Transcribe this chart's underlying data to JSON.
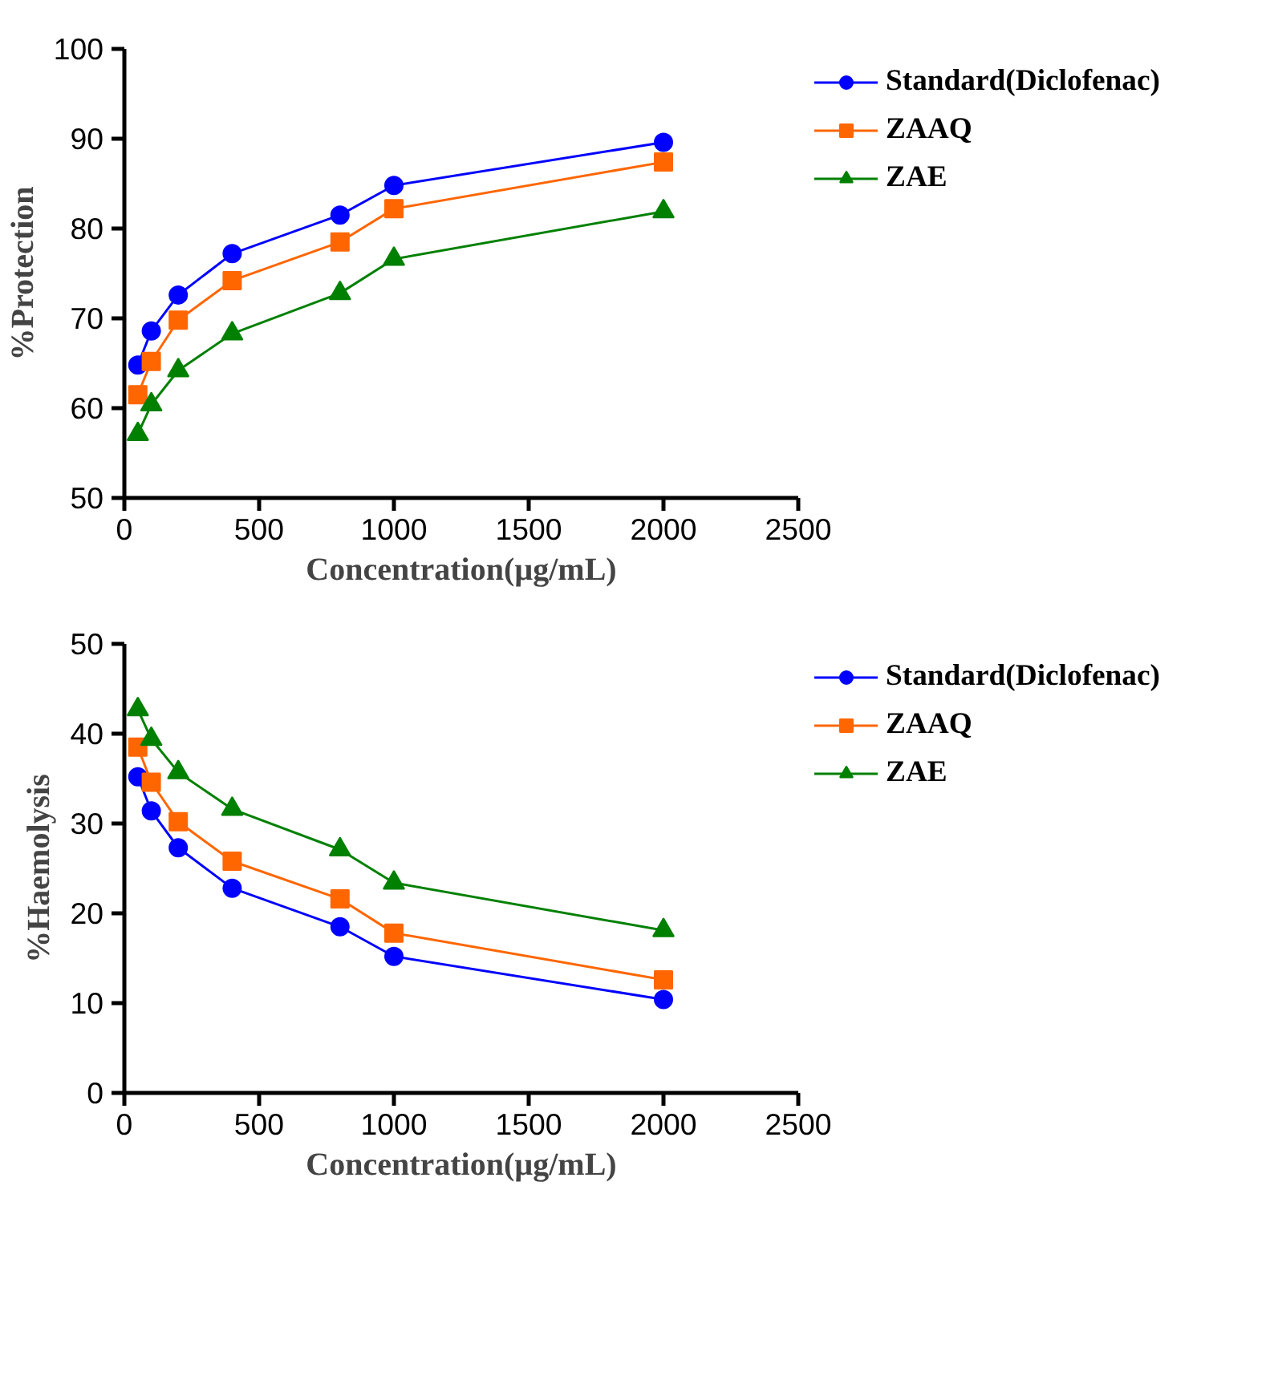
{
  "chart_data": [
    {
      "type": "line",
      "xlabel": "Concentration(µg/mL)",
      "ylabel": "%Protection",
      "x": [
        50,
        100,
        200,
        400,
        800,
        1000,
        2000
      ],
      "xlim": [
        0,
        2500
      ],
      "xticks": [
        0,
        500,
        1000,
        1500,
        2000,
        2500
      ],
      "ylim": [
        50,
        100
      ],
      "yticks": [
        50,
        60,
        70,
        80,
        90,
        100
      ],
      "grid": false,
      "legend": "top right",
      "series": [
        {
          "name": "Standard(Diclofenac)",
          "color": "#0000ff",
          "marker": "circle",
          "values": [
            64.8,
            68.6,
            72.6,
            77.2,
            81.5,
            84.8,
            89.6
          ]
        },
        {
          "name": "ZAAQ",
          "color": "#ff6600",
          "marker": "square",
          "values": [
            61.5,
            65.2,
            69.8,
            74.2,
            78.5,
            82.2,
            87.4
          ]
        },
        {
          "name": "ZAE",
          "color": "#008000",
          "marker": "triangle",
          "values": [
            57.1,
            60.4,
            64.2,
            68.3,
            72.8,
            76.6,
            81.9
          ]
        }
      ]
    },
    {
      "type": "line",
      "xlabel": "Concentration(µg/mL)",
      "ylabel": "%Haemolysis",
      "x": [
        50,
        100,
        200,
        400,
        800,
        1000,
        2000
      ],
      "xlim": [
        0,
        2500
      ],
      "xticks": [
        0,
        500,
        1000,
        1500,
        2000,
        2500
      ],
      "ylim": [
        0,
        50
      ],
      "yticks": [
        0,
        10,
        20,
        30,
        40,
        50
      ],
      "grid": false,
      "legend": "top right",
      "series": [
        {
          "name": "Standard(Diclofenac)",
          "color": "#0000ff",
          "marker": "circle",
          "values": [
            35.2,
            31.4,
            27.3,
            22.8,
            18.5,
            15.2,
            10.4
          ]
        },
        {
          "name": "ZAAQ",
          "color": "#ff6600",
          "marker": "square",
          "values": [
            38.5,
            34.6,
            30.2,
            25.8,
            21.6,
            17.8,
            12.6
          ]
        },
        {
          "name": "ZAE",
          "color": "#008000",
          "marker": "triangle",
          "values": [
            42.7,
            39.4,
            35.7,
            31.6,
            27.1,
            23.4,
            18.1
          ]
        }
      ]
    }
  ]
}
